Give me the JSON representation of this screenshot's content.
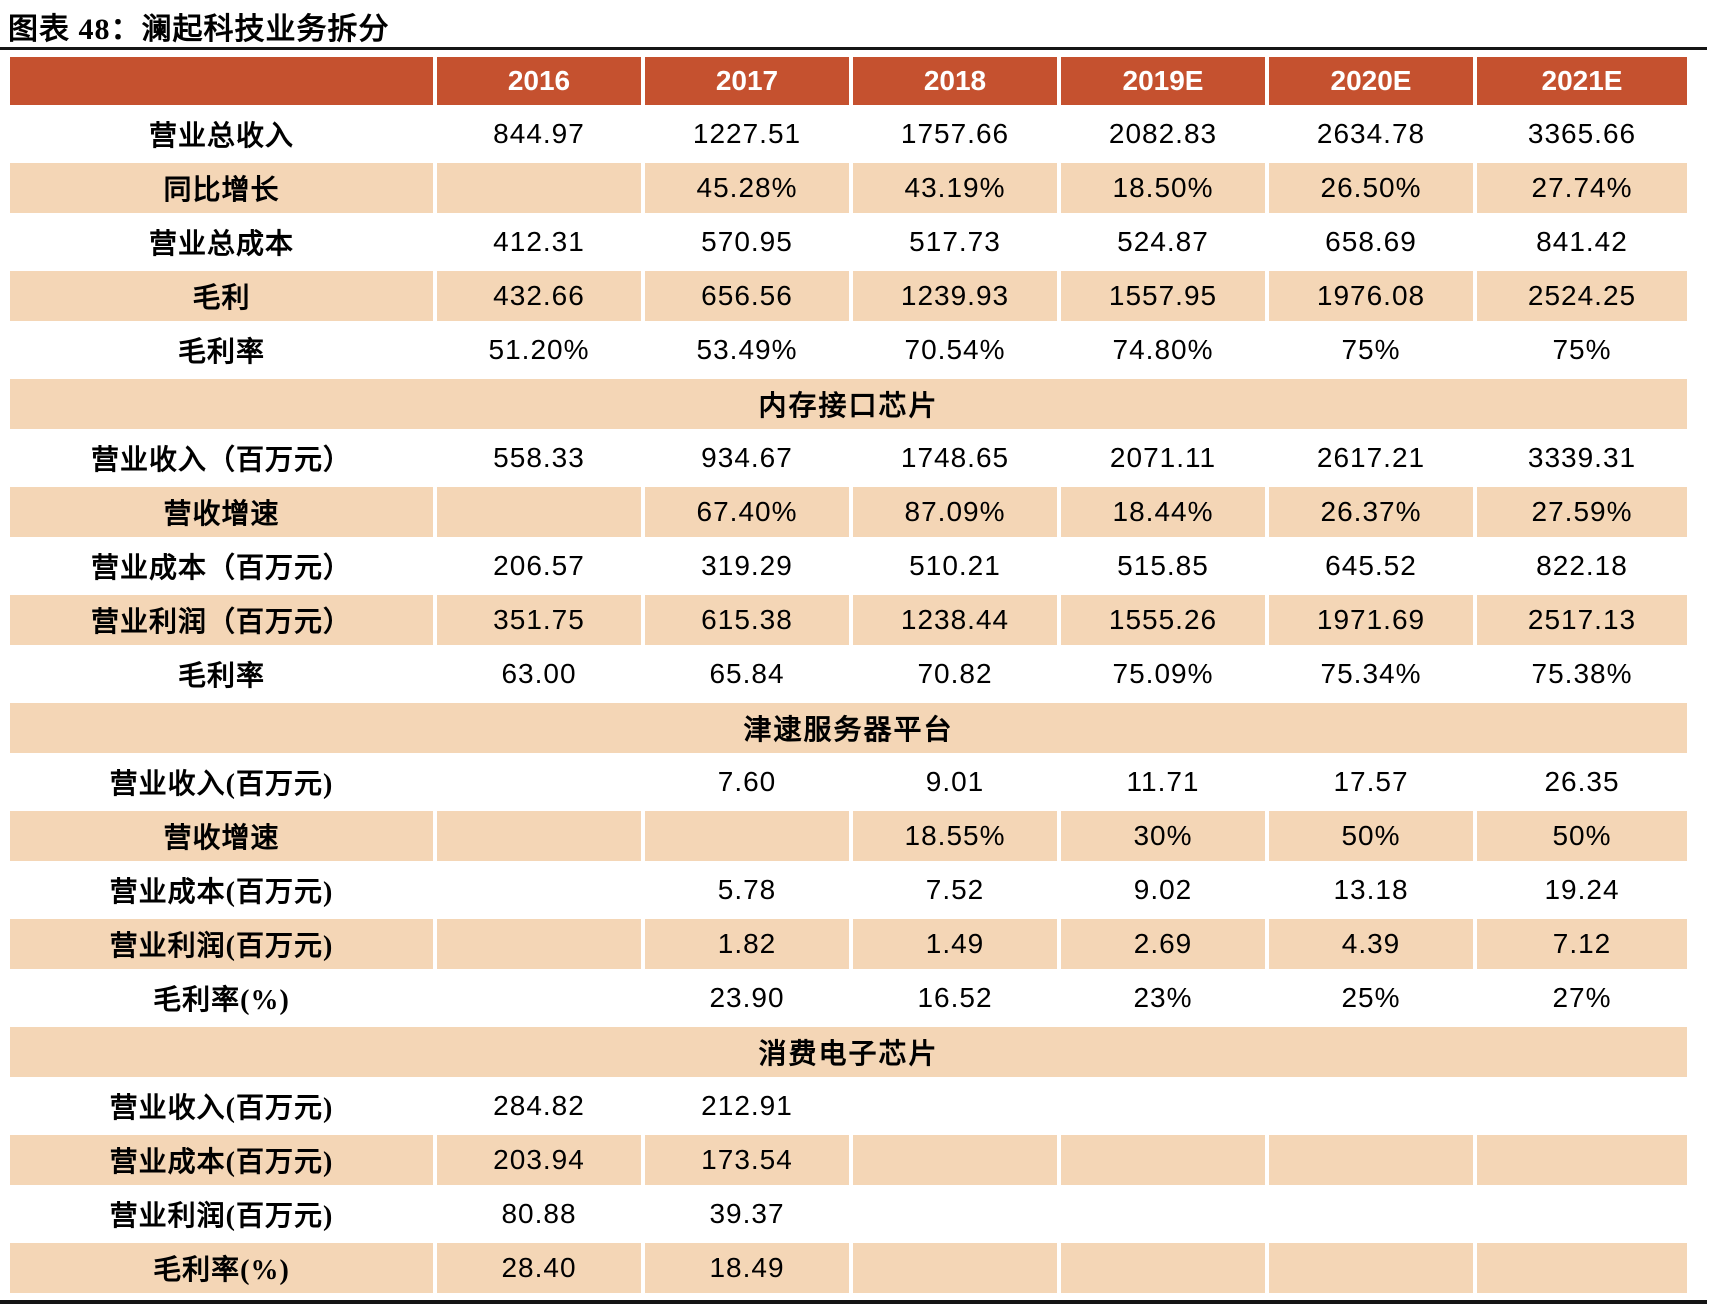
{
  "title": "图表 48：澜起科技业务拆分",
  "colors": {
    "header_bg": "#c5512f",
    "band_bg": "#f4d6b6",
    "header_text": "#ffffff",
    "body_text": "#000000",
    "rule": "#151515"
  },
  "table": {
    "corner_label": "",
    "columns": [
      "2016",
      "2017",
      "2018",
      "2019E",
      "2020E",
      "2021E"
    ],
    "rows": [
      {
        "type": "data",
        "label": "营业总收入",
        "shaded": false,
        "values": [
          "844.97",
          "1227.51",
          "1757.66",
          "2082.83",
          "2634.78",
          "3365.66"
        ]
      },
      {
        "type": "data",
        "label": "同比增长",
        "shaded": true,
        "values": [
          "",
          "45.28%",
          "43.19%",
          "18.50%",
          "26.50%",
          "27.74%"
        ]
      },
      {
        "type": "data",
        "label": "营业总成本",
        "shaded": false,
        "values": [
          "412.31",
          "570.95",
          "517.73",
          "524.87",
          "658.69",
          "841.42"
        ]
      },
      {
        "type": "data",
        "label": "毛利",
        "shaded": true,
        "values": [
          "432.66",
          "656.56",
          "1239.93",
          "1557.95",
          "1976.08",
          "2524.25"
        ]
      },
      {
        "type": "data",
        "label": "毛利率",
        "shaded": false,
        "values": [
          "51.20%",
          "53.49%",
          "70.54%",
          "74.80%",
          "75%",
          "75%"
        ]
      },
      {
        "type": "section",
        "label": "内存接口芯片"
      },
      {
        "type": "data",
        "label": "营业收入（百万元）",
        "shaded": false,
        "values": [
          "558.33",
          "934.67",
          "1748.65",
          "2071.11",
          "2617.21",
          "3339.31"
        ]
      },
      {
        "type": "data",
        "label": "营收增速",
        "shaded": true,
        "values": [
          "",
          "67.40%",
          "87.09%",
          "18.44%",
          "26.37%",
          "27.59%"
        ]
      },
      {
        "type": "data",
        "label": "营业成本（百万元）",
        "shaded": false,
        "values": [
          "206.57",
          "319.29",
          "510.21",
          "515.85",
          "645.52",
          "822.18"
        ]
      },
      {
        "type": "data",
        "label": "营业利润（百万元）",
        "shaded": true,
        "values": [
          "351.75",
          "615.38",
          "1238.44",
          "1555.26",
          "1971.69",
          "2517.13"
        ]
      },
      {
        "type": "data",
        "label": "毛利率",
        "shaded": false,
        "values": [
          "63.00",
          "65.84",
          "70.82",
          "75.09%",
          "75.34%",
          "75.38%"
        ]
      },
      {
        "type": "section",
        "label": "津逮服务器平台"
      },
      {
        "type": "data",
        "label": "营业收入(百万元)",
        "shaded": false,
        "values": [
          "",
          "7.60",
          "9.01",
          "11.71",
          "17.57",
          "26.35"
        ]
      },
      {
        "type": "data",
        "label": "营收增速",
        "shaded": true,
        "values": [
          "",
          "",
          "18.55%",
          "30%",
          "50%",
          "50%"
        ]
      },
      {
        "type": "data",
        "label": "营业成本(百万元)",
        "shaded": false,
        "values": [
          "",
          "5.78",
          "7.52",
          "9.02",
          "13.18",
          "19.24"
        ]
      },
      {
        "type": "data",
        "label": "营业利润(百万元)",
        "shaded": true,
        "values": [
          "",
          "1.82",
          "1.49",
          "2.69",
          "4.39",
          "7.12"
        ]
      },
      {
        "type": "data",
        "label": "毛利率(%)",
        "shaded": false,
        "values": [
          "",
          "23.90",
          "16.52",
          "23%",
          "25%",
          "27%"
        ]
      },
      {
        "type": "section",
        "label": "消费电子芯片"
      },
      {
        "type": "data",
        "label": "营业收入(百万元)",
        "shaded": false,
        "values": [
          "284.82",
          "212.91",
          "",
          "",
          "",
          ""
        ]
      },
      {
        "type": "data",
        "label": "营业成本(百万元)",
        "shaded": true,
        "values": [
          "203.94",
          "173.54",
          "",
          "",
          "",
          ""
        ]
      },
      {
        "type": "data",
        "label": "营业利润(百万元)",
        "shaded": false,
        "values": [
          "80.88",
          "39.37",
          "",
          "",
          "",
          ""
        ]
      },
      {
        "type": "data",
        "label": "毛利率(%)",
        "shaded": true,
        "values": [
          "28.40",
          "18.49",
          "",
          "",
          "",
          ""
        ]
      }
    ]
  }
}
